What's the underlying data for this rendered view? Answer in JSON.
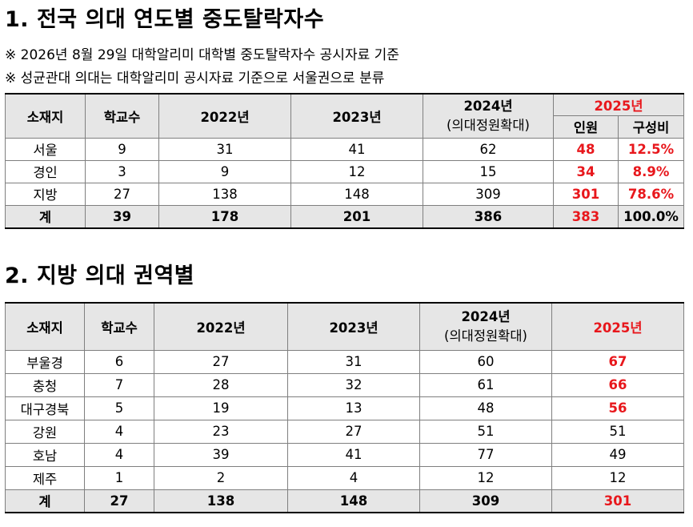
{
  "section1": {
    "title": "1. 전국 의대 연도별 중도탈락자수",
    "notes": [
      "※ 2026년 8월 29일 대학알리미 대학별 중도탈락자수 공시자료 기준",
      "※ 성균관대 의대는 대학알리미 공시자료 기준으로 서울권으로 분류"
    ],
    "headers": {
      "region": "소재지",
      "schools": "학교수",
      "y2022": "2022년",
      "y2023": "2023년",
      "y2024": "2024년",
      "y2024_sub": "(의대정원확대)",
      "y2025": "2025년",
      "count": "인원",
      "ratio": "구성비"
    },
    "rows": [
      {
        "region": "서울",
        "schools": "9",
        "y2022": "31",
        "y2023": "41",
        "y2024": "62",
        "count": "48",
        "ratio": "12.5%"
      },
      {
        "region": "경인",
        "schools": "3",
        "y2022": "9",
        "y2023": "12",
        "y2024": "15",
        "count": "34",
        "ratio": "8.9%"
      },
      {
        "region": "지방",
        "schools": "27",
        "y2022": "138",
        "y2023": "148",
        "y2024": "309",
        "count": "301",
        "ratio": "78.6%"
      }
    ],
    "total": {
      "region": "계",
      "schools": "39",
      "y2022": "178",
      "y2023": "201",
      "y2024": "386",
      "count": "383",
      "ratio": "100.0%"
    }
  },
  "section2": {
    "title": "2. 지방 의대 권역별",
    "headers": {
      "region": "소재지",
      "schools": "학교수",
      "y2022": "2022년",
      "y2023": "2023년",
      "y2024": "2024년",
      "y2024_sub": "(의대정원확대)",
      "y2025": "2025년"
    },
    "rows": [
      {
        "region": "부울경",
        "schools": "6",
        "y2022": "27",
        "y2023": "31",
        "y2024": "60",
        "y2025": "67"
      },
      {
        "region": "충청",
        "schools": "7",
        "y2022": "28",
        "y2023": "32",
        "y2024": "61",
        "y2025": "66"
      },
      {
        "region": "대구경북",
        "schools": "5",
        "y2022": "19",
        "y2023": "13",
        "y2024": "48",
        "y2025": "56"
      },
      {
        "region": "강원",
        "schools": "4",
        "y2022": "23",
        "y2023": "27",
        "y2024": "51",
        "y2025": "51"
      },
      {
        "region": "호남",
        "schools": "4",
        "y2022": "39",
        "y2023": "41",
        "y2024": "77",
        "y2025": "49"
      },
      {
        "region": "제주",
        "schools": "1",
        "y2022": "2",
        "y2023": "4",
        "y2024": "12",
        "y2025": "12"
      }
    ],
    "total": {
      "region": "계",
      "schools": "27",
      "y2022": "138",
      "y2023": "148",
      "y2024": "309",
      "y2025": "301"
    }
  },
  "colors": {
    "accent_red": "#e8171c",
    "header_bg": "#e6e6e6"
  }
}
